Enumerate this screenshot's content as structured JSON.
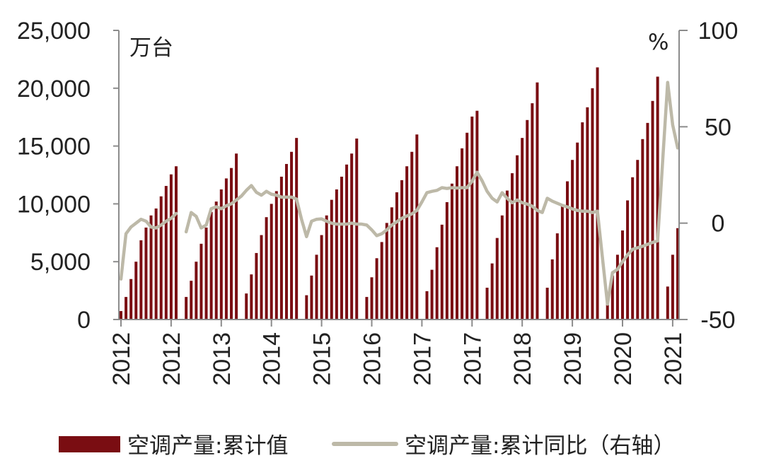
{
  "chart_data": {
    "type": "bar",
    "x": [
      "2012-01",
      "2012-02",
      "2012-03",
      "2012-04",
      "2012-05",
      "2012-06",
      "2012-07",
      "2012-08",
      "2012-09",
      "2012-10",
      "2012-11",
      "2012-12",
      "2013-01",
      "2013-02",
      "2013-03",
      "2013-04",
      "2013-05",
      "2013-06",
      "2013-07",
      "2013-08",
      "2013-09",
      "2013-10",
      "2013-11",
      "2013-12",
      "2014-01",
      "2014-02",
      "2014-03",
      "2014-04",
      "2014-05",
      "2014-06",
      "2014-07",
      "2014-08",
      "2014-09",
      "2014-10",
      "2014-11",
      "2014-12",
      "2015-01",
      "2015-02",
      "2015-03",
      "2015-04",
      "2015-05",
      "2015-06",
      "2015-07",
      "2015-08",
      "2015-09",
      "2015-10",
      "2015-11",
      "2015-12",
      "2016-01",
      "2016-02",
      "2016-03",
      "2016-04",
      "2016-05",
      "2016-06",
      "2016-07",
      "2016-08",
      "2016-09",
      "2016-10",
      "2016-11",
      "2016-12",
      "2017-01",
      "2017-02",
      "2017-03",
      "2017-04",
      "2017-05",
      "2017-06",
      "2017-07",
      "2017-08",
      "2017-09",
      "2017-10",
      "2017-11",
      "2017-12",
      "2018-01",
      "2018-02",
      "2018-03",
      "2018-04",
      "2018-05",
      "2018-06",
      "2018-07",
      "2018-08",
      "2018-09",
      "2018-10",
      "2018-11",
      "2018-12",
      "2019-01",
      "2019-02",
      "2019-03",
      "2019-04",
      "2019-05",
      "2019-06",
      "2019-07",
      "2019-08",
      "2019-09",
      "2019-10",
      "2019-11",
      "2019-12",
      "2020-01",
      "2020-02",
      "2020-03",
      "2020-04",
      "2020-05",
      "2020-06",
      "2020-07",
      "2020-08",
      "2020-09",
      "2020-10",
      "2020-11",
      "2020-12",
      "2021-01",
      "2021-02",
      "2021-03",
      "2021-04"
    ],
    "x_ticks": [
      {
        "x": "2012-01",
        "label": "2012"
      },
      {
        "x": "2012-11",
        "label": "2012"
      },
      {
        "x": "2013-09",
        "label": "2013"
      },
      {
        "x": "2014-07",
        "label": "2014"
      },
      {
        "x": "2015-05",
        "label": "2015"
      },
      {
        "x": "2016-03",
        "label": "2016"
      },
      {
        "x": "2017-01",
        "label": "2017"
      },
      {
        "x": "2017-11",
        "label": "2017"
      },
      {
        "x": "2018-09",
        "label": "2018"
      },
      {
        "x": "2019-07",
        "label": "2019"
      },
      {
        "x": "2020-05",
        "label": "2020"
      },
      {
        "x": "2021-03",
        "label": "2021"
      }
    ],
    "y_left": {
      "unit": "万台",
      "range": [
        0,
        25000
      ],
      "ticks": [
        0,
        5000,
        10000,
        15000,
        20000,
        25000
      ],
      "tick_labels": [
        "0",
        "5,000",
        "10,000",
        "15,000",
        "20,000",
        "25,000"
      ]
    },
    "y_right": {
      "unit": "%",
      "range": [
        -50,
        100
      ],
      "ticks": [
        -50,
        0,
        50,
        100
      ],
      "tick_labels": [
        "-50",
        "0",
        "50",
        "100"
      ]
    },
    "series": [
      {
        "name": "空调产量:累计值",
        "type": "bar",
        "axis": "left",
        "color": "#7a0d12",
        "values": [
          730,
          1950,
          3500,
          5000,
          6850,
          7950,
          9000,
          9600,
          10650,
          11550,
          12550,
          13250,
          null,
          1950,
          3350,
          5000,
          6550,
          7950,
          9300,
          10200,
          11250,
          12200,
          13100,
          14350,
          null,
          2250,
          3900,
          5750,
          7300,
          8850,
          10000,
          11100,
          12350,
          13450,
          14500,
          15700,
          null,
          2100,
          3800,
          5600,
          7300,
          9000,
          10350,
          11250,
          12350,
          13400,
          14350,
          15650,
          null,
          1950,
          3650,
          5300,
          6700,
          8350,
          9700,
          11000,
          12050,
          13250,
          14500,
          16000,
          null,
          2450,
          4300,
          6250,
          8200,
          10150,
          11750,
          13250,
          14800,
          16150,
          17550,
          18050,
          null,
          2750,
          4850,
          7050,
          9000,
          11150,
          12650,
          14200,
          15700,
          17250,
          18700,
          20500,
          null,
          2750,
          5200,
          7450,
          9800,
          11950,
          13800,
          15300,
          17050,
          18350,
          20000,
          21800,
          null,
          1700,
          3800,
          5600,
          7700,
          10300,
          12300,
          13800,
          15600,
          17000,
          18900,
          21000,
          null,
          2850,
          5600,
          7900
        ]
      },
      {
        "name": "空调产量:累计同比（右轴）",
        "type": "line",
        "axis": "right",
        "color": "#bdb9a8",
        "values": [
          -29,
          -5.5,
          -2,
          0,
          2,
          1,
          -2,
          -2.5,
          -1,
          1,
          2.5,
          5,
          null,
          -4.5,
          5.5,
          3.5,
          -2.5,
          -1,
          7.5,
          8.5,
          7.5,
          9,
          10,
          12,
          14,
          17,
          19.5,
          16,
          14.5,
          16.5,
          15,
          14.5,
          13.5,
          13.5,
          13.5,
          12.5,
          2,
          -7,
          1,
          2,
          2.2,
          1,
          0,
          -0.5,
          -0.5,
          -0.5,
          0,
          -0.5,
          -0.5,
          -1,
          -3.5,
          -6.5,
          -5.5,
          -3.5,
          -1,
          0.7,
          2.5,
          3.7,
          4.8,
          6.6,
          11,
          15.8,
          16.5,
          17,
          18.4,
          18,
          18.4,
          18.2,
          18.4,
          18.4,
          21.7,
          26.4,
          22,
          16.5,
          12.9,
          11,
          15.8,
          12.9,
          10.6,
          12,
          10.6,
          9.9,
          8.8,
          6.6,
          5.5,
          12.9,
          11.4,
          10.3,
          9.2,
          8.4,
          7.4,
          6.6,
          6.2,
          6.2,
          5.5,
          6.2,
          -18,
          -42,
          -25.7,
          -24,
          -20,
          -16.5,
          -13.6,
          -12.8,
          -12,
          -11,
          -10,
          -9.2,
          32,
          73,
          51,
          39
        ]
      }
    ],
    "legend": "bottom",
    "grid": false
  }
}
